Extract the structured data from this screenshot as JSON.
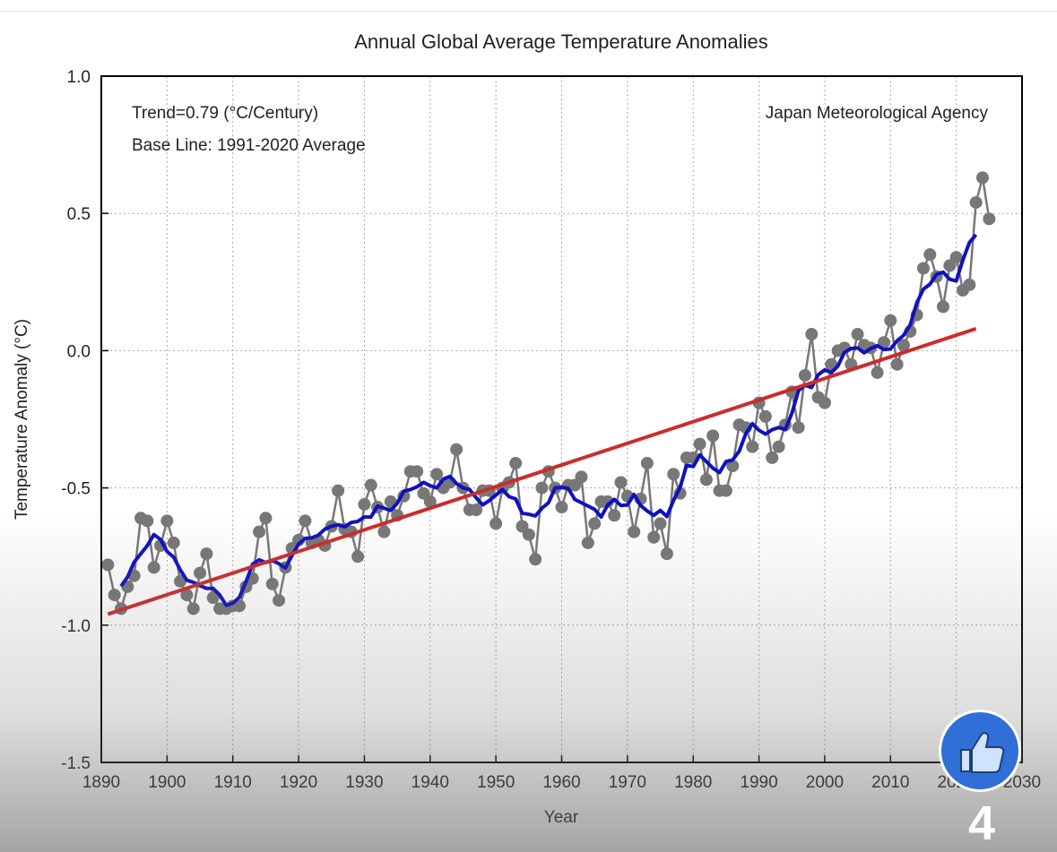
{
  "chart_data": {
    "type": "line",
    "title": "Annual Global Average Temperature Anomalies",
    "xlabel": "Year",
    "ylabel": "Temperature Anomaly (°C)",
    "xlim": [
      1890,
      2030
    ],
    "ylim": [
      -1.5,
      1.0
    ],
    "xticks": [
      "1890",
      "1900",
      "1910",
      "1920",
      "1930",
      "1940",
      "1950",
      "1960",
      "1970",
      "1980",
      "1990",
      "2000",
      "2010",
      "2020",
      "2030"
    ],
    "yticks": [
      "1.0",
      "0.5",
      "0.0",
      "-0.5",
      "-1.0",
      "-1.5"
    ],
    "grid": true,
    "annotations": {
      "trend": "Trend=0.79 (°C/Century)",
      "baseline": "Base Line: 1991-2020 Average",
      "source": "Japan Meteorological Agency"
    },
    "annual": {
      "start_year": 1891,
      "values": [
        -0.78,
        -0.89,
        -0.94,
        -0.86,
        -0.82,
        -0.61,
        -0.62,
        -0.79,
        -0.71,
        -0.62,
        -0.7,
        -0.84,
        -0.89,
        -0.94,
        -0.81,
        -0.74,
        -0.9,
        -0.94,
        -0.94,
        -0.93,
        -0.93,
        -0.86,
        -0.83,
        -0.66,
        -0.61,
        -0.85,
        -0.91,
        -0.79,
        -0.72,
        -0.69,
        -0.62,
        -0.7,
        -0.69,
        -0.71,
        -0.64,
        -0.51,
        -0.65,
        -0.66,
        -0.75,
        -0.56,
        -0.49,
        -0.57,
        -0.66,
        -0.55,
        -0.6,
        -0.53,
        -0.44,
        -0.44,
        -0.52,
        -0.55,
        -0.45,
        -0.5,
        -0.48,
        -0.36,
        -0.5,
        -0.58,
        -0.58,
        -0.51,
        -0.51,
        -0.63,
        -0.5,
        -0.48,
        -0.41,
        -0.64,
        -0.67,
        -0.76,
        -0.5,
        -0.44,
        -0.5,
        -0.57,
        -0.49,
        -0.49,
        -0.46,
        -0.7,
        -0.63,
        -0.55,
        -0.55,
        -0.6,
        -0.48,
        -0.53,
        -0.66,
        -0.54,
        -0.41,
        -0.68,
        -0.63,
        -0.74,
        -0.45,
        -0.52,
        -0.39,
        -0.39,
        -0.34,
        -0.47,
        -0.31,
        -0.51,
        -0.51,
        -0.42,
        -0.27,
        -0.28,
        -0.35,
        -0.19,
        -0.24,
        -0.39,
        -0.35,
        -0.27,
        -0.15,
        -0.28,
        -0.09,
        0.06,
        -0.17,
        -0.19,
        -0.05,
        0.0,
        0.01,
        -0.05,
        0.06,
        0.02,
        0.01,
        -0.08,
        0.03,
        0.11,
        -0.05,
        0.02,
        0.07,
        0.13,
        0.3,
        0.35,
        0.27,
        0.16,
        0.31,
        0.34,
        0.22,
        0.24,
        0.54,
        0.63,
        0.48
      ],
      "color": "#777777"
    },
    "running_mean": {
      "window_years": 5,
      "color": "#1010c0"
    },
    "trend_line": {
      "x": [
        1891,
        2023
      ],
      "y": [
        -0.96,
        0.08
      ],
      "color": "#cc2b2b"
    }
  },
  "overlay": {
    "like_icon": "thumbs-up-icon",
    "like_count": "4",
    "like_color": "#2f6fd6"
  }
}
